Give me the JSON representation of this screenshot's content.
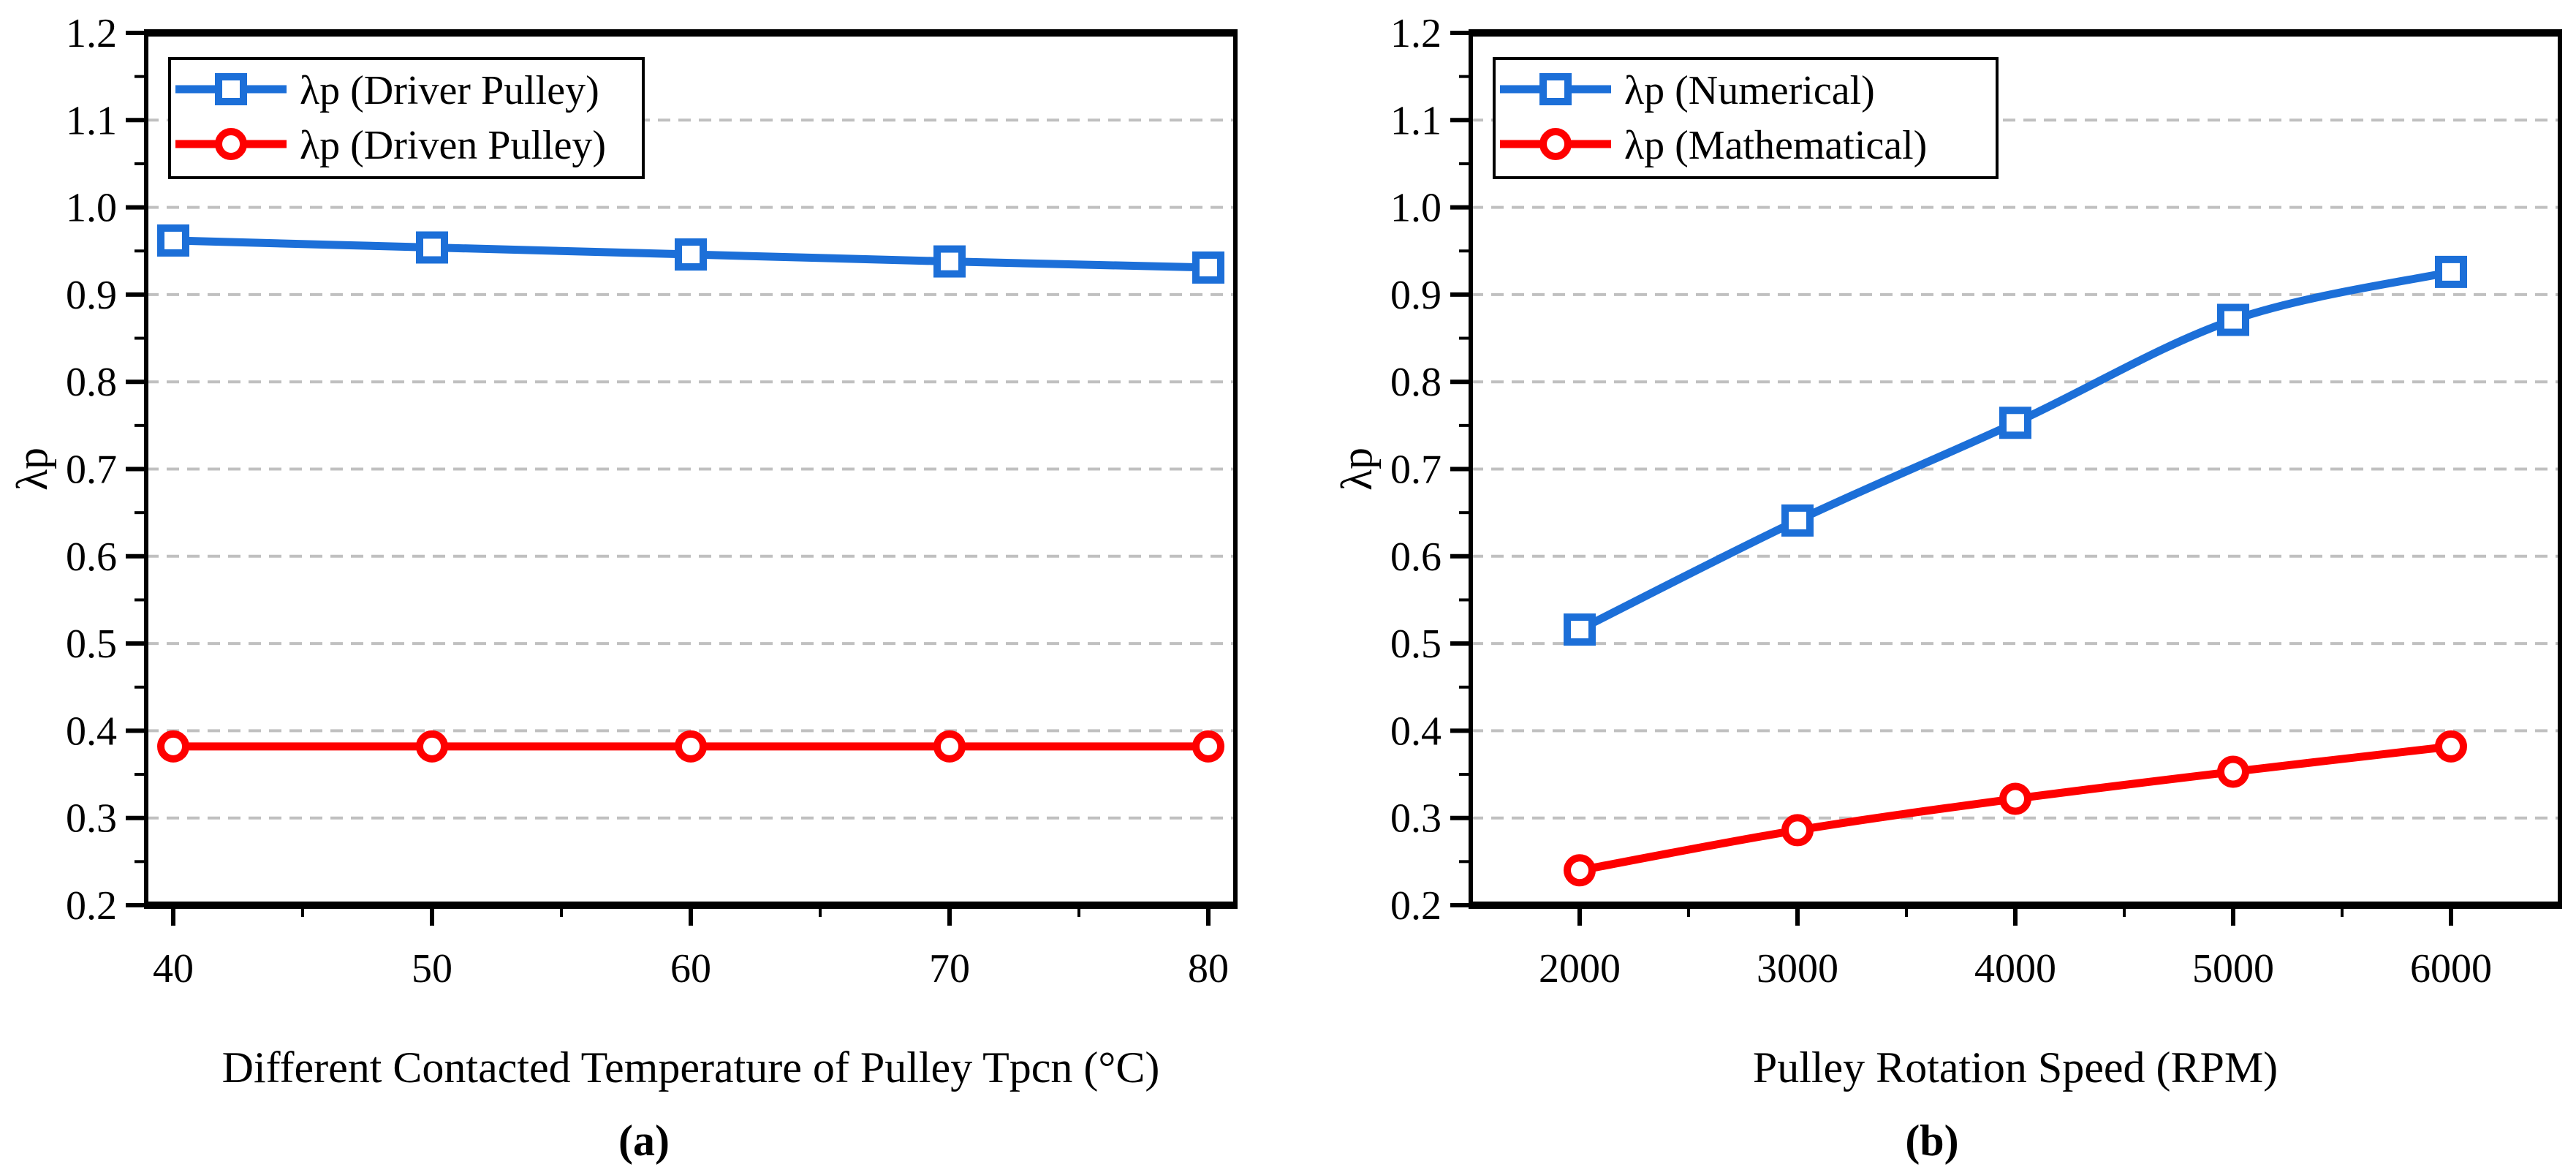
{
  "figure": {
    "background": "#ffffff",
    "text_color": "#000000",
    "grid_color": "#c0c0c0",
    "axis_color": "#000000",
    "accent_blue": "#1c6fd8",
    "accent_red": "#fe0000"
  },
  "chart_data": [
    {
      "type": "line",
      "panel_caption": "(a)",
      "xlabel": "Different Contacted Temperature of Pulley Tpcn (°C)",
      "ylabel": "λp",
      "categories": [
        40,
        50,
        60,
        70,
        80
      ],
      "xtick_labels": [
        "40",
        "50",
        "60",
        "70",
        "80"
      ],
      "ylim": [
        0.2,
        1.2
      ],
      "ytick_labels": [
        "0.2",
        "0.3",
        "0.4",
        "0.5",
        "0.6",
        "0.7",
        "0.8",
        "0.9",
        "1.0",
        "1.1",
        "1.2"
      ],
      "ytick_step": 0.1,
      "yminor_step": 0.05,
      "grid": "horizontal dashed at major y ticks",
      "legend_position": "top-left",
      "series": [
        {
          "name": "λp (Driver Pulley)",
          "color": "#1c6fd8",
          "marker": "square",
          "values": [
            0.962,
            0.954,
            0.946,
            0.938,
            0.931
          ]
        },
        {
          "name": "λp (Driven Pulley)",
          "color": "#fe0000",
          "marker": "circle",
          "values": [
            0.382,
            0.382,
            0.382,
            0.382,
            0.382
          ]
        }
      ]
    },
    {
      "type": "line",
      "panel_caption": "(b)",
      "xlabel": "Pulley Rotation Speed (RPM)",
      "ylabel": "λp",
      "categories": [
        2000,
        3000,
        4000,
        5000,
        6000
      ],
      "xtick_labels": [
        "2000",
        "3000",
        "4000",
        "5000",
        "6000"
      ],
      "ylim": [
        0.2,
        1.2
      ],
      "ytick_labels": [
        "0.2",
        "0.3",
        "0.4",
        "0.5",
        "0.6",
        "0.7",
        "0.8",
        "0.9",
        "1.0",
        "1.1",
        "1.2"
      ],
      "ytick_step": 0.1,
      "yminor_step": 0.05,
      "grid": "horizontal dashed at major y ticks",
      "legend_position": "top-left",
      "series": [
        {
          "name": "λp (Numerical)",
          "color": "#1c6fd8",
          "marker": "square",
          "values": [
            0.516,
            0.641,
            0.753,
            0.871,
            0.926
          ]
        },
        {
          "name": "λp (Mathematical)",
          "color": "#fe0000",
          "marker": "circle",
          "values": [
            0.24,
            0.286,
            0.322,
            0.353,
            0.382
          ]
        }
      ]
    }
  ]
}
